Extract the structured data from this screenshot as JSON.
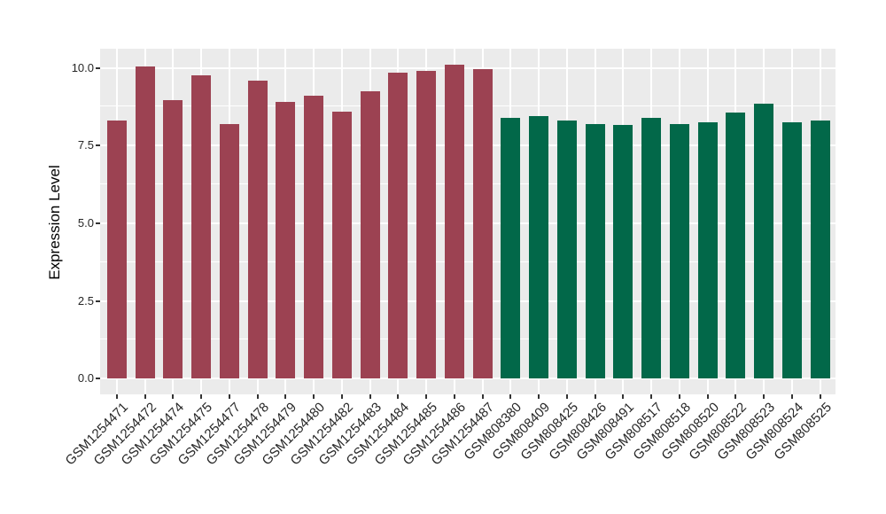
{
  "chart_data": {
    "type": "bar",
    "title": "",
    "xlabel": "",
    "ylabel": "Expression Level",
    "categories": [
      "GSM1254471",
      "GSM1254472",
      "GSM1254474",
      "GSM1254475",
      "GSM1254477",
      "GSM1254478",
      "GSM1254479",
      "GSM1254480",
      "GSM1254482",
      "GSM1254483",
      "GSM1254484",
      "GSM1254485",
      "GSM1254486",
      "GSM1254487",
      "GSM808380",
      "GSM808409",
      "GSM808425",
      "GSM808426",
      "GSM808491",
      "GSM808517",
      "GSM808518",
      "GSM808520",
      "GSM808522",
      "GSM808523",
      "GSM808524",
      "GSM808525"
    ],
    "values": [
      8.3,
      10.05,
      8.95,
      9.75,
      8.2,
      9.6,
      8.9,
      9.1,
      8.6,
      9.25,
      9.85,
      9.9,
      10.1,
      9.95,
      8.4,
      8.45,
      8.3,
      8.2,
      8.15,
      8.4,
      8.2,
      8.25,
      8.55,
      8.85,
      8.25,
      8.3
    ],
    "bar_colors": [
      "#9C4252",
      "#9C4252",
      "#9C4252",
      "#9C4252",
      "#9C4252",
      "#9C4252",
      "#9C4252",
      "#9C4252",
      "#9C4252",
      "#9C4252",
      "#9C4252",
      "#9C4252",
      "#9C4252",
      "#9C4252",
      "#026849",
      "#026849",
      "#026849",
      "#026849",
      "#026849",
      "#026849",
      "#026849",
      "#026849",
      "#026849",
      "#026849",
      "#026849",
      "#026849"
    ],
    "ytick_labels": [
      "0.0",
      "2.5",
      "5.0",
      "7.5",
      "10.0"
    ],
    "ytick_values": [
      0,
      2.5,
      5,
      7.5,
      10
    ],
    "ylim": [
      0,
      10.6
    ],
    "grid": "major-and-minor",
    "legend": "none",
    "panel_background": "#EBEBEB",
    "gridline_color": "#FFFFFF"
  }
}
